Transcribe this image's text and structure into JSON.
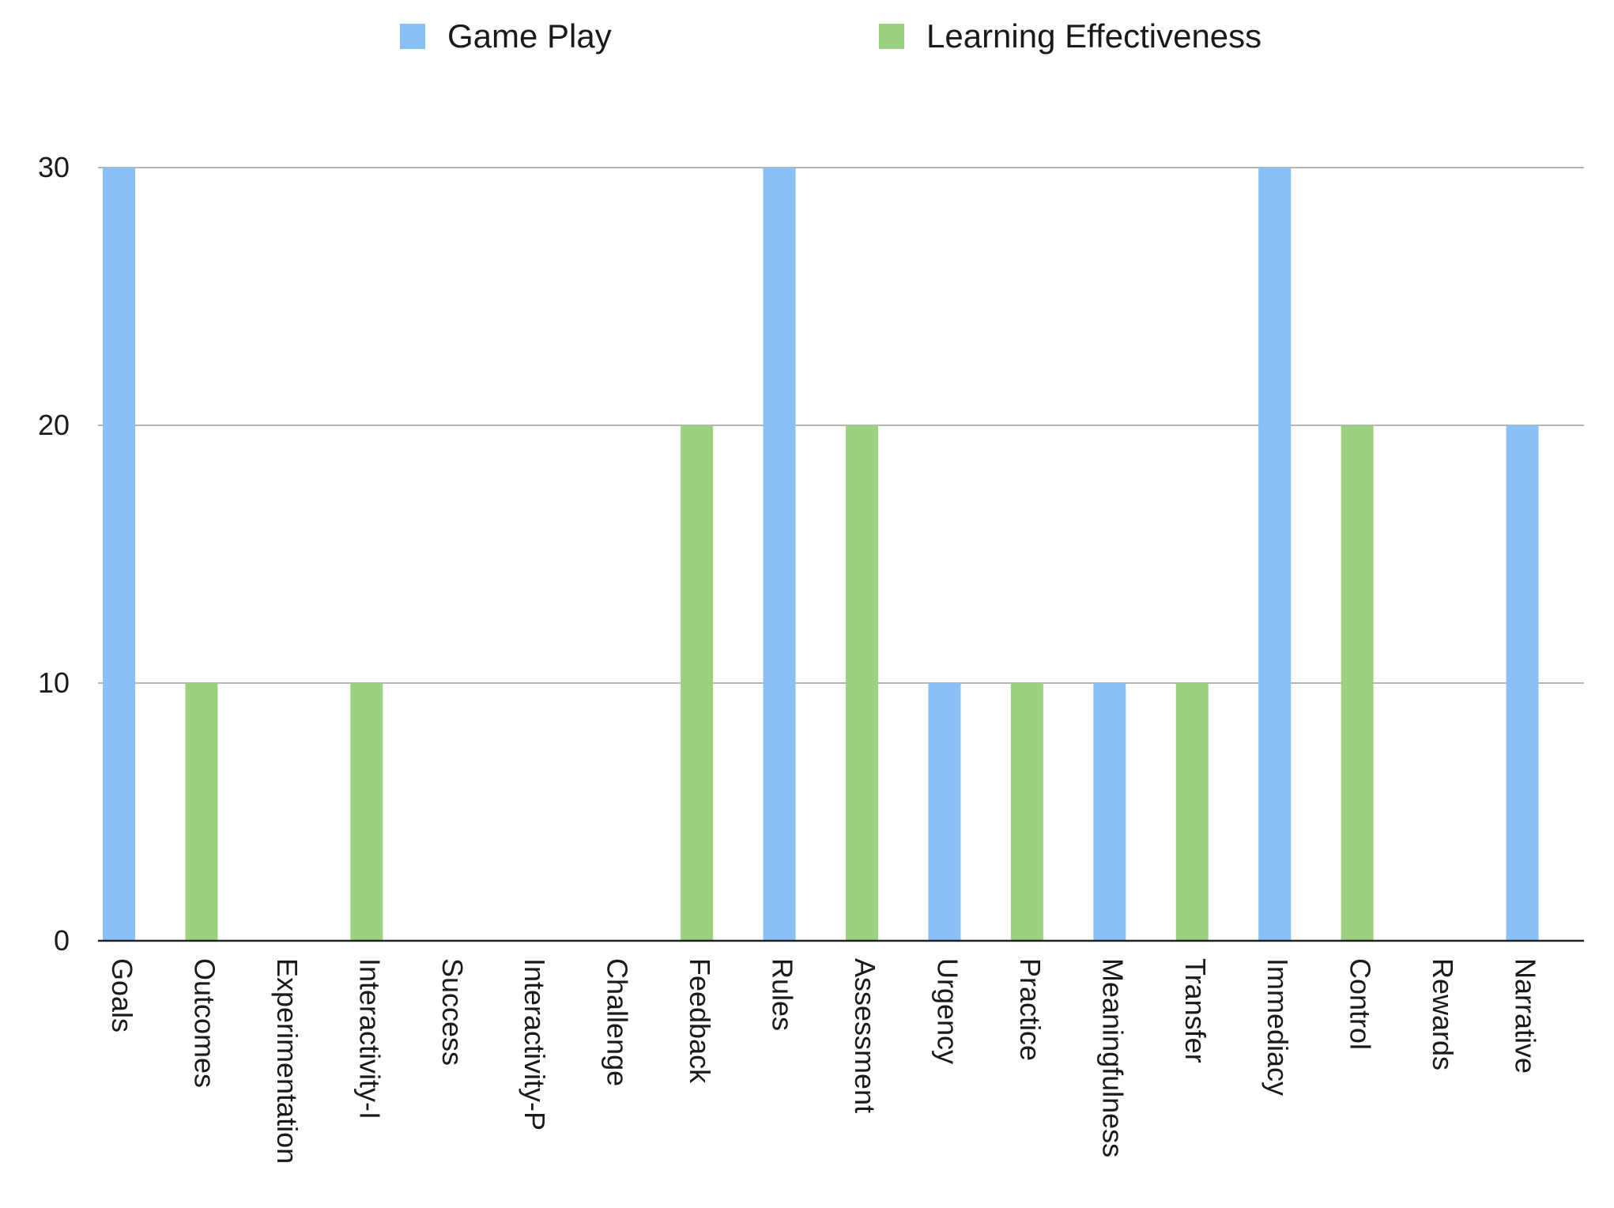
{
  "chart_data": {
    "type": "bar",
    "title": "",
    "xlabel": "",
    "ylabel": "",
    "ylim": [
      0,
      30
    ],
    "yticks": [
      0,
      10,
      20,
      30
    ],
    "grid": true,
    "legend_position": "top",
    "categories": [
      "Goals",
      "Outcomes",
      "Experimentation",
      "Interactivity-I",
      "Success",
      "Interactivity-P",
      "Challenge",
      "Feedback",
      "Rules",
      "Assessment",
      "Urgency",
      "Practice",
      "Meaningfulness",
      "Transfer",
      "Immediacy",
      "Control",
      "Rewards",
      "Narrative"
    ],
    "series": [
      {
        "name": "Game Play",
        "color": "#89c0f7",
        "values": [
          30,
          0,
          0,
          0,
          0,
          0,
          0,
          0,
          30,
          0,
          10,
          0,
          10,
          0,
          30,
          0,
          0,
          20
        ]
      },
      {
        "name": "Learning Effectiveness",
        "color": "#9dd182",
        "values": [
          0,
          10,
          0,
          10,
          0,
          0,
          0,
          20,
          0,
          20,
          0,
          10,
          0,
          10,
          0,
          20,
          0,
          0
        ]
      }
    ]
  }
}
